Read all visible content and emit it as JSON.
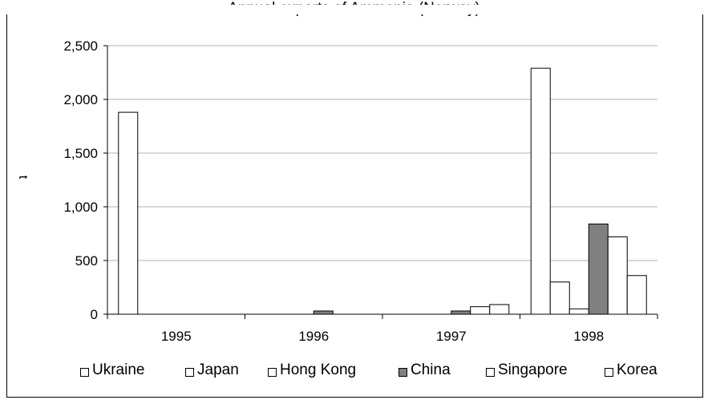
{
  "chart_data": {
    "type": "bar",
    "title": "Annual exports of Ammonia (Norway)",
    "xlabel": "",
    "ylabel": "t",
    "categories": [
      "1995",
      "1996",
      "1997",
      "1998"
    ],
    "series": [
      {
        "name": "Ukraine",
        "color": "#ffffff",
        "values": [
          1880,
          0,
          0,
          2290
        ]
      },
      {
        "name": "Japan",
        "color": "#ffffff",
        "values": [
          0,
          0,
          0,
          300
        ]
      },
      {
        "name": "Hong Kong",
        "color": "#ffffff",
        "values": [
          0,
          0,
          0,
          50
        ]
      },
      {
        "name": "China",
        "color": "#808080",
        "values": [
          0,
          30,
          30,
          840
        ]
      },
      {
        "name": "Singapore",
        "color": "#ffffff",
        "values": [
          0,
          0,
          70,
          720
        ]
      },
      {
        "name": "Korea",
        "color": "#ffffff",
        "values": [
          0,
          0,
          90,
          360
        ]
      }
    ],
    "ylim": [
      0,
      2500
    ],
    "yticks": [
      "0",
      "500",
      "1,000",
      "1,500",
      "2,000",
      "2,500"
    ],
    "ytick_values": [
      0,
      500,
      1000,
      1500,
      2000,
      2500
    ],
    "grid": true,
    "legend_position": "bottom"
  }
}
